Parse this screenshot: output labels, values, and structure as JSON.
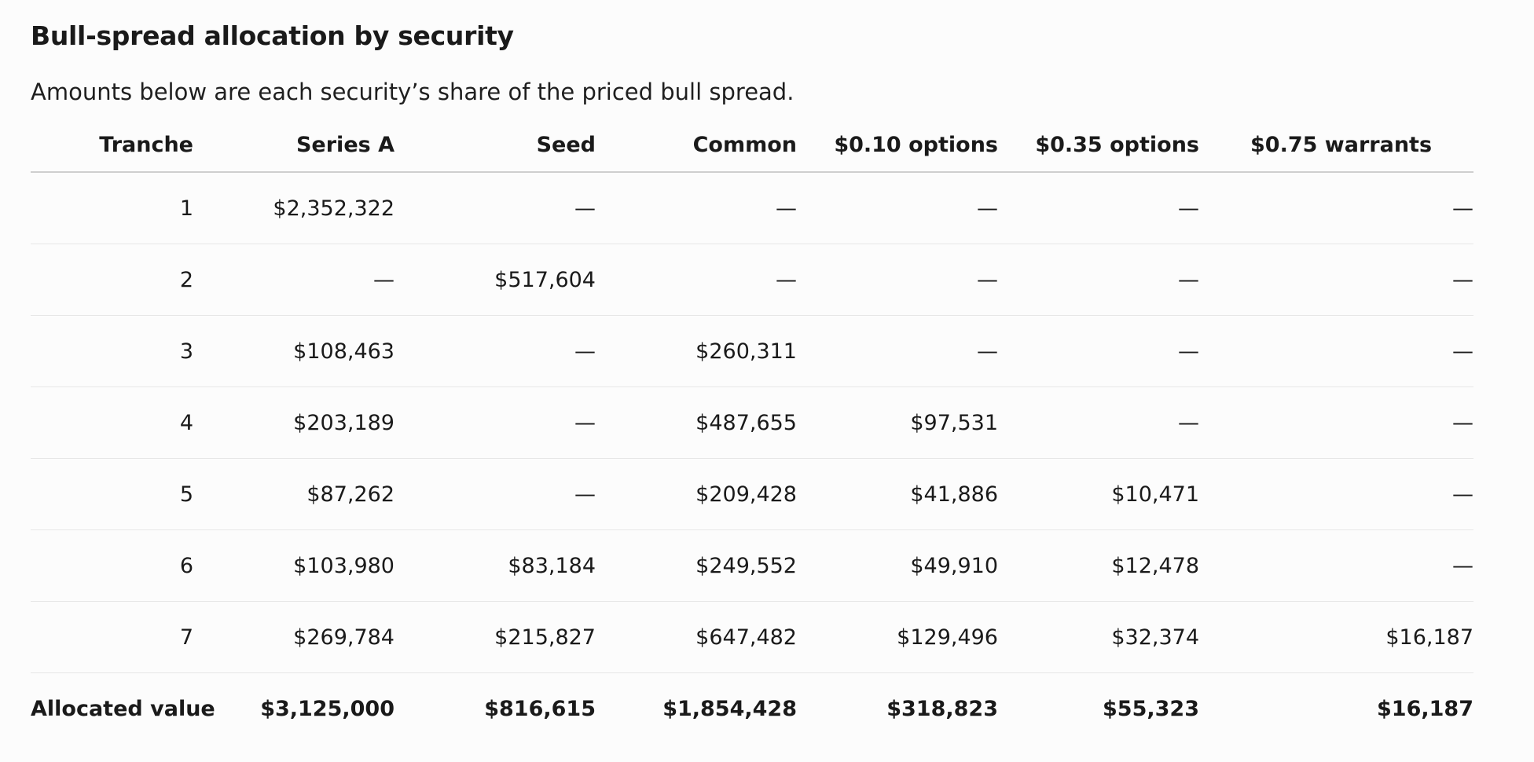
{
  "title": "Bull-spread allocation by security",
  "subtitle": "Amounts below are each security’s share of the priced bull spread.",
  "table": {
    "headers": [
      "Tranche",
      "Series A",
      "Seed",
      "Common",
      "$0.10 options",
      "$0.35 options",
      "$0.75 warrants"
    ],
    "rows": [
      [
        "1",
        "$2,352,322",
        "—",
        "—",
        "—",
        "—",
        "—"
      ],
      [
        "2",
        "—",
        "$517,604",
        "—",
        "—",
        "—",
        "—"
      ],
      [
        "3",
        "$108,463",
        "—",
        "$260,311",
        "—",
        "—",
        "—"
      ],
      [
        "4",
        "$203,189",
        "—",
        "$487,655",
        "$97,531",
        "—",
        "—"
      ],
      [
        "5",
        "$87,262",
        "—",
        "$209,428",
        "$41,886",
        "$10,471",
        "—"
      ],
      [
        "6",
        "$103,980",
        "$83,184",
        "$249,552",
        "$49,910",
        "$12,478",
        "—"
      ],
      [
        "7",
        "$269,784",
        "$215,827",
        "$647,482",
        "$129,496",
        "$32,374",
        "$16,187"
      ]
    ],
    "total": [
      "Allocated value",
      "$3,125,000",
      "$816,615",
      "$1,854,428",
      "$318,823",
      "$55,323",
      "$16,187"
    ]
  }
}
